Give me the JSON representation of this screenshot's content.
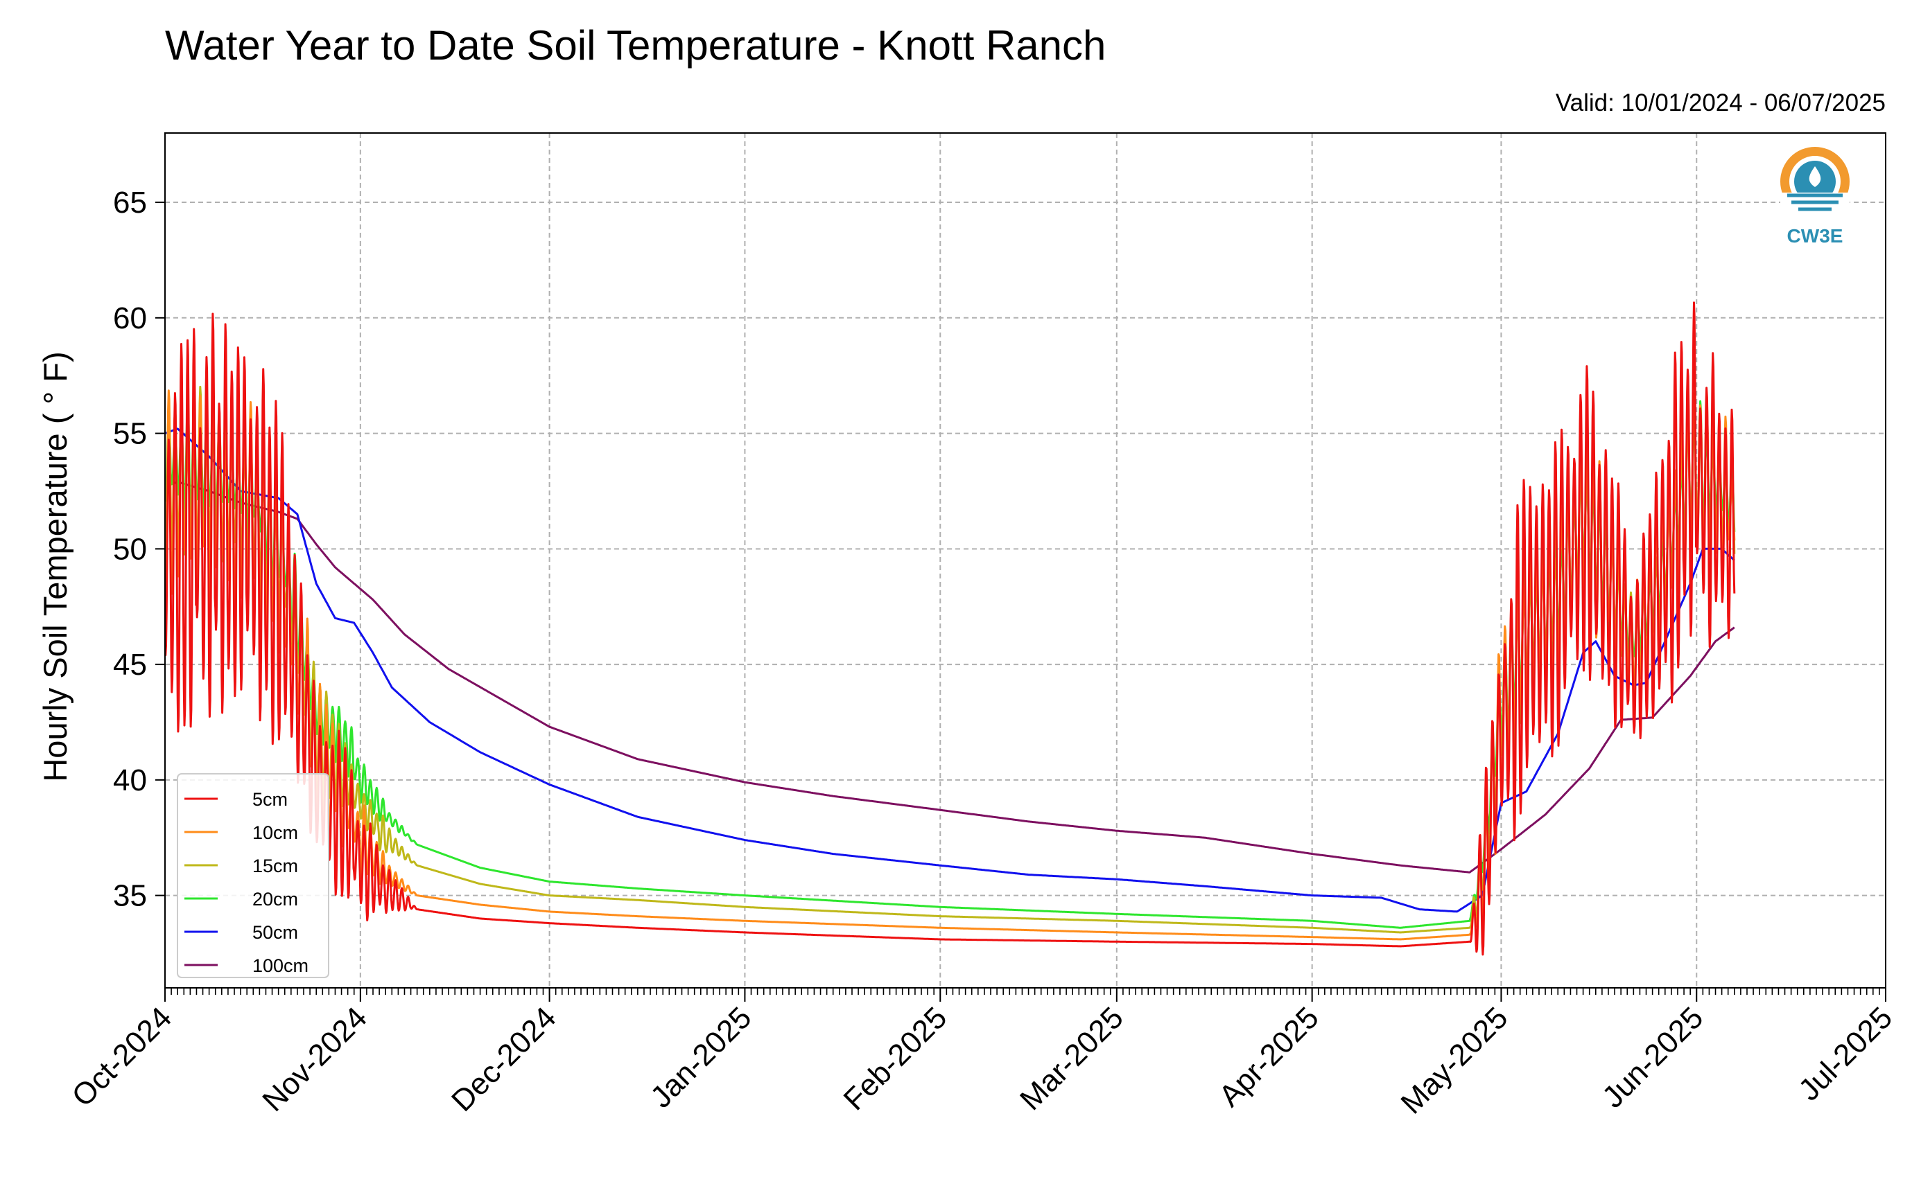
{
  "chart_data": {
    "type": "line",
    "title": "Water Year to Date Soil Temperature - Knott Ranch",
    "subtitle": "Valid: 10/01/2024 - 06/07/2025",
    "ylabel": "Hourly Soil Temperature ( ° F)",
    "xlabel": "",
    "x_range": [
      "2024-10-01",
      "2025-07-01"
    ],
    "ylim": [
      31.0,
      68.0
    ],
    "grid": true,
    "legend_position": "lower-left",
    "x_ticks": [
      {
        "date": "2024-10-01",
        "label": "Oct-2024"
      },
      {
        "date": "2024-11-01",
        "label": "Nov-2024"
      },
      {
        "date": "2024-12-01",
        "label": "Dec-2024"
      },
      {
        "date": "2025-01-01",
        "label": "Jan-2025"
      },
      {
        "date": "2025-02-01",
        "label": "Feb-2025"
      },
      {
        "date": "2025-03-01",
        "label": "Mar-2025"
      },
      {
        "date": "2025-04-01",
        "label": "Apr-2025"
      },
      {
        "date": "2025-05-01",
        "label": "May-2025"
      },
      {
        "date": "2025-06-01",
        "label": "Jun-2025"
      },
      {
        "date": "2025-07-01",
        "label": "Jul-2025"
      }
    ],
    "y_ticks": [
      35,
      40,
      45,
      50,
      55,
      60,
      65
    ],
    "series": [
      {
        "name": "5cm",
        "color": "#ee1111",
        "points": [
          [
            "2024-10-01",
            50.0
          ],
          [
            "2024-10-08",
            51.5
          ],
          [
            "2024-10-15",
            51.0
          ],
          [
            "2024-10-20",
            48.0
          ],
          [
            "2024-10-25",
            40.0
          ],
          [
            "2024-10-30",
            38.0
          ],
          [
            "2024-11-01",
            36.5
          ],
          [
            "2024-11-05",
            35.3
          ],
          [
            "2024-11-10",
            34.4
          ],
          [
            "2024-11-20",
            34.0
          ],
          [
            "2024-12-01",
            33.8
          ],
          [
            "2024-12-15",
            33.6
          ],
          [
            "2025-01-01",
            33.4
          ],
          [
            "2025-02-01",
            33.1
          ],
          [
            "2025-03-01",
            33.0
          ],
          [
            "2025-04-01",
            32.9
          ],
          [
            "2025-04-15",
            32.8
          ],
          [
            "2025-04-26",
            33.0
          ],
          [
            "2025-04-28",
            35.5
          ],
          [
            "2025-05-01",
            42.0
          ],
          [
            "2025-05-05",
            46.5
          ],
          [
            "2025-05-10",
            48.0
          ],
          [
            "2025-05-14",
            51.5
          ],
          [
            "2025-05-18",
            49.0
          ],
          [
            "2025-05-22",
            45.0
          ],
          [
            "2025-05-26",
            48.5
          ],
          [
            "2025-05-31",
            53.5
          ],
          [
            "2025-06-04",
            52.0
          ],
          [
            "2025-06-07",
            51.0
          ]
        ],
        "amplitude": [
          [
            "2024-10-01",
            13.0
          ],
          [
            "2024-10-20",
            11.0
          ],
          [
            "2024-10-25",
            8.0
          ],
          [
            "2024-11-01",
            4.0
          ],
          [
            "2024-11-06",
            1.5
          ],
          [
            "2024-11-10",
            0.0
          ],
          [
            "2025-04-26",
            0.0
          ],
          [
            "2025-04-28",
            5.0
          ],
          [
            "2025-05-01",
            10.0
          ],
          [
            "2025-05-10",
            11.0
          ],
          [
            "2025-05-15",
            12.0
          ],
          [
            "2025-05-22",
            7.0
          ],
          [
            "2025-06-01",
            12.0
          ],
          [
            "2025-06-07",
            7.0
          ]
        ]
      },
      {
        "name": "10cm",
        "color": "#ff8c1a",
        "points": [
          [
            "2024-10-01",
            52.0
          ],
          [
            "2024-10-08",
            52.5
          ],
          [
            "2024-10-15",
            51.5
          ],
          [
            "2024-10-20",
            48.5
          ],
          [
            "2024-10-25",
            41.0
          ],
          [
            "2024-10-30",
            39.0
          ],
          [
            "2024-11-01",
            37.5
          ],
          [
            "2024-11-05",
            36.0
          ],
          [
            "2024-11-10",
            35.0
          ],
          [
            "2024-11-20",
            34.6
          ],
          [
            "2024-12-01",
            34.3
          ],
          [
            "2024-12-15",
            34.1
          ],
          [
            "2025-01-01",
            33.9
          ],
          [
            "2025-02-01",
            33.6
          ],
          [
            "2025-03-01",
            33.4
          ],
          [
            "2025-04-01",
            33.2
          ],
          [
            "2025-04-15",
            33.1
          ],
          [
            "2025-04-26",
            33.3
          ],
          [
            "2025-04-28",
            35.5
          ],
          [
            "2025-05-01",
            42.5
          ],
          [
            "2025-05-05",
            46.5
          ],
          [
            "2025-05-10",
            48.0
          ],
          [
            "2025-05-14",
            51.5
          ],
          [
            "2025-05-18",
            49.0
          ],
          [
            "2025-05-22",
            45.5
          ],
          [
            "2025-05-26",
            48.5
          ],
          [
            "2025-05-31",
            53.5
          ],
          [
            "2025-06-04",
            52.5
          ],
          [
            "2025-06-07",
            51.5
          ]
        ],
        "amplitude": [
          [
            "2024-10-01",
            8.0
          ],
          [
            "2024-10-20",
            6.5
          ],
          [
            "2024-10-25",
            5.0
          ],
          [
            "2024-11-01",
            2.5
          ],
          [
            "2024-11-06",
            1.0
          ],
          [
            "2024-11-10",
            0.0
          ],
          [
            "2025-04-26",
            0.0
          ],
          [
            "2025-04-28",
            3.0
          ],
          [
            "2025-05-01",
            6.0
          ],
          [
            "2025-05-10",
            7.0
          ],
          [
            "2025-05-15",
            7.5
          ],
          [
            "2025-05-22",
            4.5
          ],
          [
            "2025-06-01",
            7.5
          ],
          [
            "2025-06-07",
            4.5
          ]
        ]
      },
      {
        "name": "15cm",
        "color": "#bfb81a",
        "points": [
          [
            "2024-10-01",
            53.0
          ],
          [
            "2024-10-08",
            53.0
          ],
          [
            "2024-10-15",
            52.0
          ],
          [
            "2024-10-20",
            49.0
          ],
          [
            "2024-10-25",
            42.0
          ],
          [
            "2024-10-30",
            40.0
          ],
          [
            "2024-11-01",
            39.0
          ],
          [
            "2024-11-05",
            37.5
          ],
          [
            "2024-11-10",
            36.3
          ],
          [
            "2024-11-20",
            35.5
          ],
          [
            "2024-12-01",
            35.0
          ],
          [
            "2024-12-15",
            34.8
          ],
          [
            "2025-01-01",
            34.5
          ],
          [
            "2025-02-01",
            34.1
          ],
          [
            "2025-03-01",
            33.9
          ],
          [
            "2025-04-01",
            33.6
          ],
          [
            "2025-04-15",
            33.4
          ],
          [
            "2025-04-26",
            33.6
          ],
          [
            "2025-04-28",
            36.0
          ],
          [
            "2025-05-01",
            43.0
          ],
          [
            "2025-05-05",
            46.5
          ],
          [
            "2025-05-10",
            48.0
          ],
          [
            "2025-05-14",
            51.5
          ],
          [
            "2025-05-18",
            49.0
          ],
          [
            "2025-05-22",
            45.5
          ],
          [
            "2025-05-26",
            48.5
          ],
          [
            "2025-05-31",
            53.5
          ],
          [
            "2025-06-04",
            52.5
          ],
          [
            "2025-06-07",
            51.5
          ]
        ],
        "amplitude": [
          [
            "2024-10-01",
            6.0
          ],
          [
            "2024-10-20",
            5.0
          ],
          [
            "2024-10-25",
            4.0
          ],
          [
            "2024-11-01",
            2.0
          ],
          [
            "2024-11-06",
            0.8
          ],
          [
            "2024-11-10",
            0.0
          ],
          [
            "2025-04-26",
            0.0
          ],
          [
            "2025-04-28",
            2.5
          ],
          [
            "2025-05-01",
            5.0
          ],
          [
            "2025-05-10",
            5.5
          ],
          [
            "2025-05-15",
            6.0
          ],
          [
            "2025-05-22",
            3.5
          ],
          [
            "2025-06-01",
            6.0
          ],
          [
            "2025-06-07",
            3.5
          ]
        ]
      },
      {
        "name": "20cm",
        "color": "#2ee62e",
        "points": [
          [
            "2024-10-01",
            54.0
          ],
          [
            "2024-10-08",
            53.5
          ],
          [
            "2024-10-15",
            52.5
          ],
          [
            "2024-10-20",
            49.5
          ],
          [
            "2024-10-25",
            43.0
          ],
          [
            "2024-10-30",
            41.5
          ],
          [
            "2024-11-01",
            40.0
          ],
          [
            "2024-11-05",
            38.5
          ],
          [
            "2024-11-10",
            37.2
          ],
          [
            "2024-11-20",
            36.2
          ],
          [
            "2024-12-01",
            35.6
          ],
          [
            "2024-12-15",
            35.3
          ],
          [
            "2025-01-01",
            35.0
          ],
          [
            "2025-02-01",
            34.5
          ],
          [
            "2025-03-01",
            34.2
          ],
          [
            "2025-04-01",
            33.9
          ],
          [
            "2025-04-15",
            33.6
          ],
          [
            "2025-04-26",
            33.9
          ],
          [
            "2025-04-28",
            36.5
          ],
          [
            "2025-05-01",
            43.5
          ],
          [
            "2025-05-05",
            46.5
          ],
          [
            "2025-05-10",
            48.0
          ],
          [
            "2025-05-14",
            51.5
          ],
          [
            "2025-05-18",
            49.0
          ],
          [
            "2025-05-22",
            46.0
          ],
          [
            "2025-05-26",
            48.5
          ],
          [
            "2025-05-31",
            53.5
          ],
          [
            "2025-06-04",
            53.0
          ],
          [
            "2025-06-07",
            52.0
          ]
        ],
        "amplitude": [
          [
            "2024-10-01",
            4.0
          ],
          [
            "2024-10-20",
            3.5
          ],
          [
            "2024-10-25",
            3.0
          ],
          [
            "2024-11-01",
            1.5
          ],
          [
            "2024-11-06",
            0.5
          ],
          [
            "2024-11-10",
            0.0
          ],
          [
            "2025-04-26",
            0.0
          ],
          [
            "2025-04-28",
            2.0
          ],
          [
            "2025-05-01",
            3.5
          ],
          [
            "2025-05-10",
            4.0
          ],
          [
            "2025-05-15",
            4.5
          ],
          [
            "2025-05-22",
            2.5
          ],
          [
            "2025-06-01",
            4.5
          ],
          [
            "2025-06-07",
            2.5
          ]
        ]
      },
      {
        "name": "50cm",
        "color": "#1111ee",
        "points": [
          [
            "2024-10-01",
            55.0
          ],
          [
            "2024-10-03",
            55.2
          ],
          [
            "2024-10-08",
            54.0
          ],
          [
            "2024-10-13",
            52.5
          ],
          [
            "2024-10-19",
            52.2
          ],
          [
            "2024-10-22",
            51.5
          ],
          [
            "2024-10-25",
            48.5
          ],
          [
            "2024-10-28",
            47.0
          ],
          [
            "2024-10-31",
            46.8
          ],
          [
            "2024-11-03",
            45.5
          ],
          [
            "2024-11-06",
            44.0
          ],
          [
            "2024-11-12",
            42.5
          ],
          [
            "2024-11-20",
            41.2
          ],
          [
            "2024-12-01",
            39.8
          ],
          [
            "2024-12-15",
            38.4
          ],
          [
            "2025-01-01",
            37.4
          ],
          [
            "2025-01-15",
            36.8
          ],
          [
            "2025-02-01",
            36.3
          ],
          [
            "2025-02-15",
            35.9
          ],
          [
            "2025-03-01",
            35.7
          ],
          [
            "2025-03-15",
            35.4
          ],
          [
            "2025-04-01",
            35.0
          ],
          [
            "2025-04-12",
            34.9
          ],
          [
            "2025-04-18",
            34.4
          ],
          [
            "2025-04-24",
            34.3
          ],
          [
            "2025-04-28",
            35.0
          ],
          [
            "2025-05-01",
            39.0
          ],
          [
            "2025-05-05",
            39.5
          ],
          [
            "2025-05-10",
            42.0
          ],
          [
            "2025-05-14",
            45.5
          ],
          [
            "2025-05-16",
            46.0
          ],
          [
            "2025-05-19",
            44.5
          ],
          [
            "2025-05-22",
            44.1
          ],
          [
            "2025-05-24",
            44.2
          ],
          [
            "2025-05-27",
            46.0
          ],
          [
            "2025-05-31",
            48.5
          ],
          [
            "2025-06-02",
            50.0
          ],
          [
            "2025-06-05",
            50.0
          ],
          [
            "2025-06-07",
            49.5
          ]
        ]
      },
      {
        "name": "100cm",
        "color": "#7d1060",
        "points": [
          [
            "2024-10-01",
            52.7
          ],
          [
            "2024-10-03",
            52.9
          ],
          [
            "2024-10-08",
            52.5
          ],
          [
            "2024-10-13",
            52.0
          ],
          [
            "2024-10-19",
            51.6
          ],
          [
            "2024-10-22",
            51.3
          ],
          [
            "2024-10-25",
            50.2
          ],
          [
            "2024-10-28",
            49.2
          ],
          [
            "2024-10-31",
            48.5
          ],
          [
            "2024-11-03",
            47.8
          ],
          [
            "2024-11-08",
            46.3
          ],
          [
            "2024-11-15",
            44.8
          ],
          [
            "2024-12-01",
            42.3
          ],
          [
            "2024-12-15",
            40.9
          ],
          [
            "2025-01-01",
            39.9
          ],
          [
            "2025-01-15",
            39.3
          ],
          [
            "2025-02-01",
            38.7
          ],
          [
            "2025-02-15",
            38.2
          ],
          [
            "2025-03-01",
            37.8
          ],
          [
            "2025-03-15",
            37.5
          ],
          [
            "2025-04-01",
            36.8
          ],
          [
            "2025-04-15",
            36.3
          ],
          [
            "2025-04-26",
            36.0
          ],
          [
            "2025-05-01",
            37.0
          ],
          [
            "2025-05-08",
            38.5
          ],
          [
            "2025-05-15",
            40.5
          ],
          [
            "2025-05-20",
            42.6
          ],
          [
            "2025-05-25",
            42.7
          ],
          [
            "2025-05-31",
            44.5
          ],
          [
            "2025-06-04",
            46.0
          ],
          [
            "2025-06-07",
            46.6
          ]
        ]
      }
    ]
  },
  "logo": {
    "text": "CW3E"
  }
}
